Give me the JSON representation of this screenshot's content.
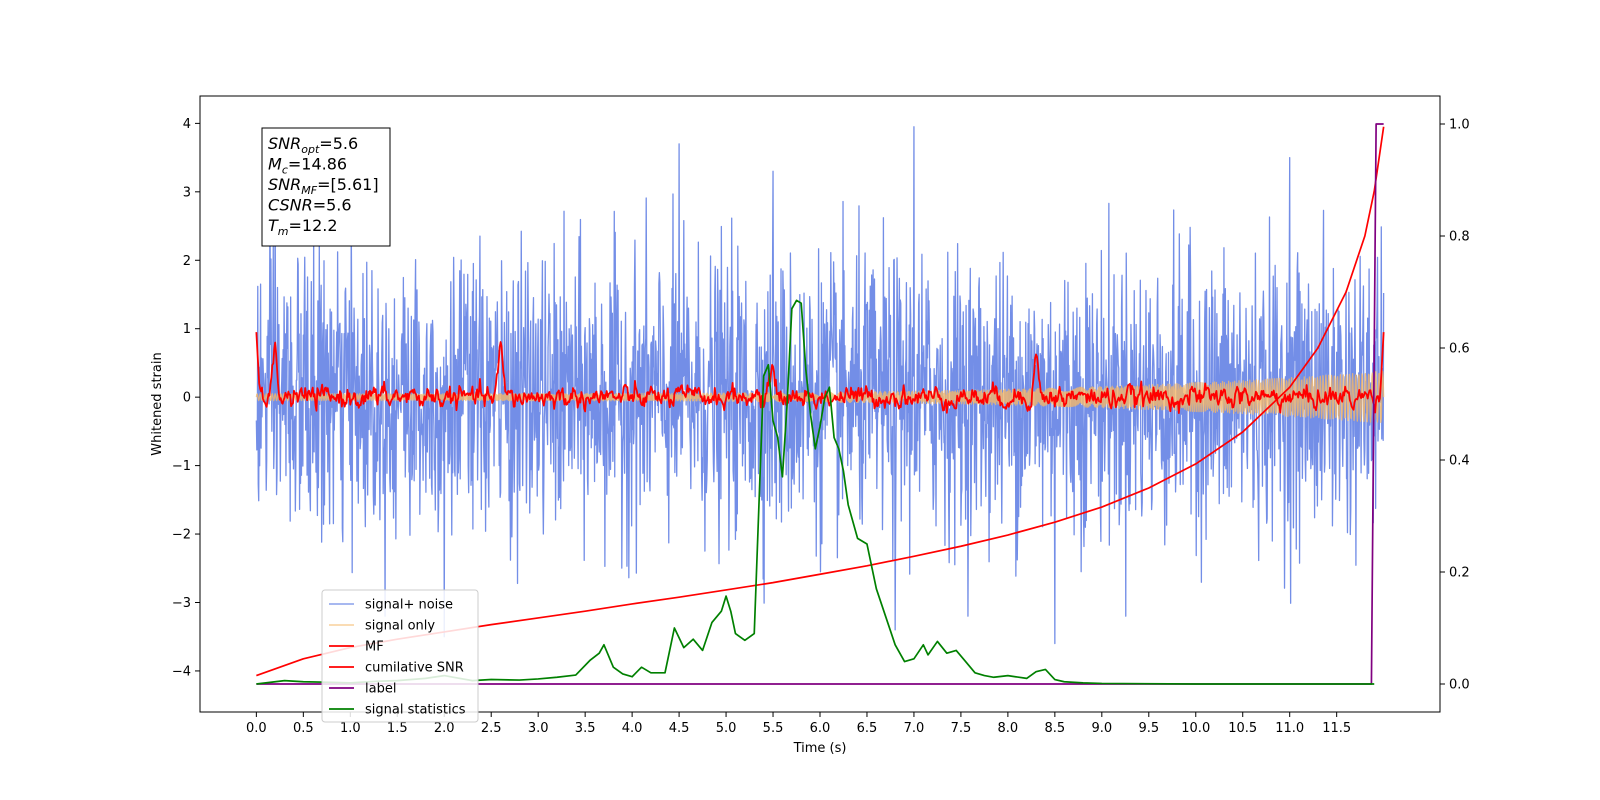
{
  "chart_data": {
    "type": "line",
    "xlabel": "Time (s)",
    "ylabel": "Whitened strain",
    "xlim": [
      -0.6,
      12.6
    ],
    "ylim": [
      -4.6,
      4.4
    ],
    "y2lim": [
      -0.05,
      1.05
    ],
    "xticks": [
      "0.0",
      "0.5",
      "1.0",
      "1.5",
      "2.0",
      "2.5",
      "3.0",
      "3.5",
      "4.0",
      "4.5",
      "5.0",
      "5.5",
      "6.0",
      "6.5",
      "7.0",
      "7.5",
      "8.0",
      "8.5",
      "9.0",
      "9.5",
      "10.0",
      "10.5",
      "11.0",
      "11.5"
    ],
    "yticks": [
      "4",
      "3",
      "2",
      "1",
      "0",
      "−1",
      "−2",
      "−3",
      "−4"
    ],
    "y2ticks": [
      "1.0",
      "0.8",
      "0.6",
      "0.4",
      "0.2",
      "0.0"
    ],
    "grid": false,
    "legend_position": "lower-left",
    "info_box": [
      {
        "base": "SNR",
        "sub": "opt",
        "value": "=5.6"
      },
      {
        "base": "M",
        "sub": "c",
        "value": "=14.86"
      },
      {
        "base": "SNR",
        "sub": "MF",
        "value": "=[5.61]"
      },
      {
        "base": "CSNR",
        "sub": "",
        "value": "=5.6"
      },
      {
        "base": "T",
        "sub": "m",
        "value": "=12.2"
      }
    ],
    "series": [
      {
        "name": "signal+ noise",
        "color": "#6b88e6",
        "axis": "left",
        "kind": "noise",
        "x_range": [
          0,
          12.0
        ],
        "amplitude": 1.0,
        "peaks": [
          [
            7.0,
            3.95
          ],
          [
            4.5,
            3.7
          ],
          [
            11.0,
            3.5
          ],
          [
            5.5,
            3.3
          ],
          [
            0.2,
            3.2
          ],
          [
            8.5,
            -3.6
          ],
          [
            2.0,
            -3.5
          ],
          [
            6.8,
            -3.4
          ]
        ]
      },
      {
        "name": "signal only",
        "color": "#f4b86a",
        "axis": "left",
        "kind": "chirp",
        "x_range": [
          0,
          12.0
        ],
        "start_amplitude": 0.05,
        "end_amplitude": 0.38
      },
      {
        "name": "MF",
        "color": "#ff0000",
        "axis": "left",
        "kind": "mf",
        "x_range": [
          0,
          12.0
        ],
        "start_value": 0.95,
        "end_value": 0.95,
        "peaks": [
          [
            0.2,
            0.6
          ],
          [
            2.6,
            0.7
          ],
          [
            8.3,
            0.55
          ],
          [
            5.5,
            0.45
          ]
        ]
      },
      {
        "name": "cumilative SNR",
        "color": "#ff0000",
        "axis": "right",
        "x": [
          0,
          0.5,
          1,
          1.5,
          2,
          2.5,
          3,
          3.5,
          4,
          4.5,
          5,
          5.5,
          6,
          6.5,
          7,
          7.5,
          8,
          8.5,
          9,
          9.5,
          10,
          10.5,
          11,
          11.3,
          11.6,
          11.8,
          11.9,
          12.0
        ],
        "y": [
          0.015,
          0.045,
          0.065,
          0.08,
          0.093,
          0.106,
          0.118,
          0.13,
          0.143,
          0.155,
          0.168,
          0.181,
          0.196,
          0.211,
          0.228,
          0.246,
          0.266,
          0.289,
          0.316,
          0.35,
          0.393,
          0.45,
          0.53,
          0.6,
          0.7,
          0.8,
          0.88,
          0.995
        ]
      },
      {
        "name": "label",
        "color": "#800080",
        "axis": "right",
        "x": [
          0,
          11.87,
          11.92,
          12.0
        ],
        "y": [
          0.0,
          0.0,
          1.0,
          1.0
        ]
      },
      {
        "name": "signal statistics",
        "color": "#008000",
        "axis": "right",
        "x": [
          0,
          0.3,
          0.5,
          0.8,
          1.0,
          1.3,
          1.5,
          1.8,
          2.0,
          2.1,
          2.3,
          2.5,
          2.8,
          3.0,
          3.2,
          3.4,
          3.55,
          3.65,
          3.7,
          3.8,
          3.9,
          4.0,
          4.1,
          4.2,
          4.35,
          4.45,
          4.55,
          4.65,
          4.75,
          4.85,
          4.95,
          5.0,
          5.05,
          5.1,
          5.2,
          5.3,
          5.4,
          5.45,
          5.5,
          5.55,
          5.6,
          5.65,
          5.7,
          5.75,
          5.8,
          5.85,
          5.9,
          5.95,
          6.0,
          6.05,
          6.1,
          6.15,
          6.2,
          6.25,
          6.3,
          6.4,
          6.5,
          6.55,
          6.6,
          6.7,
          6.8,
          6.9,
          7.0,
          7.1,
          7.15,
          7.25,
          7.35,
          7.45,
          7.55,
          7.65,
          7.75,
          7.85,
          8.0,
          8.2,
          8.3,
          8.4,
          8.5,
          8.6,
          8.8,
          9.0,
          10.0,
          11.0,
          11.9
        ],
        "y": [
          0.0,
          0.006,
          0.004,
          0.003,
          0.002,
          0.005,
          0.006,
          0.01,
          0.015,
          0.012,
          0.006,
          0.008,
          0.007,
          0.009,
          0.012,
          0.016,
          0.042,
          0.055,
          0.07,
          0.03,
          0.018,
          0.013,
          0.03,
          0.02,
          0.02,
          0.1,
          0.065,
          0.08,
          0.06,
          0.11,
          0.13,
          0.157,
          0.13,
          0.09,
          0.078,
          0.09,
          0.55,
          0.57,
          0.47,
          0.44,
          0.37,
          0.5,
          0.67,
          0.685,
          0.68,
          0.56,
          0.48,
          0.42,
          0.46,
          0.51,
          0.53,
          0.44,
          0.42,
          0.38,
          0.32,
          0.26,
          0.25,
          0.21,
          0.17,
          0.12,
          0.07,
          0.04,
          0.045,
          0.07,
          0.052,
          0.076,
          0.055,
          0.06,
          0.04,
          0.02,
          0.015,
          0.012,
          0.015,
          0.01,
          0.022,
          0.026,
          0.008,
          0.004,
          0.002,
          0.001,
          0.0,
          0.0,
          0.0
        ]
      }
    ]
  }
}
